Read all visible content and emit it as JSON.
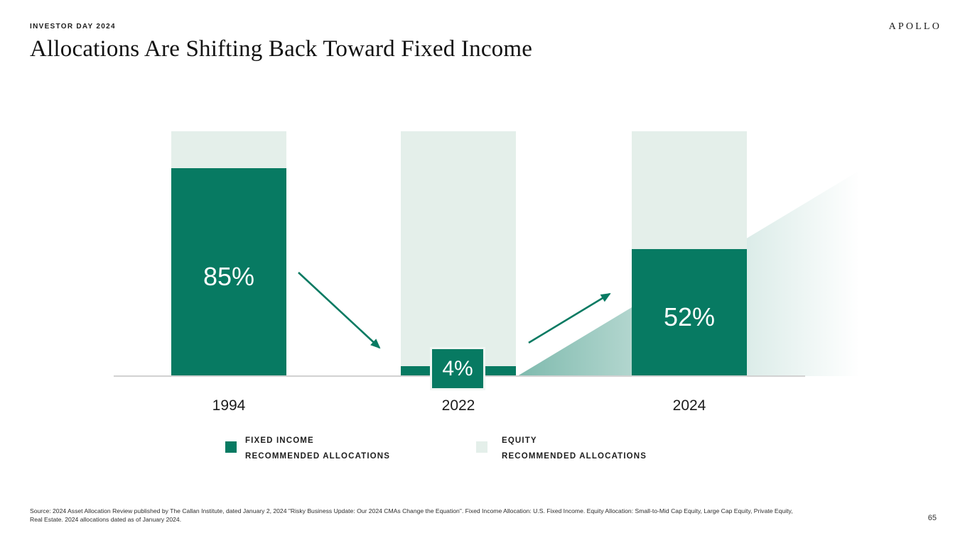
{
  "slide": {
    "eyebrow": "INVESTOR DAY 2024",
    "logo": "APOLLO",
    "title": "Allocations Are Shifting Back Toward Fixed Income",
    "page_number": "65",
    "footer_line1": "Source: 2024 Asset Allocation Review published by The Callan Institute, dated January 2, 2024 \"Risky Business Update: Our 2024 CMAs Change the Equation\". Fixed Income Allocation: U.S. Fixed Income. Equity Allocation: Small-to-Mid Cap Equity, Large Cap Equity, Private Equity,",
    "footer_line2": "Real Estate. 2024 allocations dated as of January 2024."
  },
  "colors": {
    "fixed_income": "#077a62",
    "equity": "#e4efea",
    "axis_line": "#d2d2d2"
  },
  "legend": {
    "items": [
      {
        "line1": "FIXED INCOME",
        "line2": "RECOMMENDED ALLOCATIONS",
        "swatch_color": "#077a62"
      },
      {
        "line1": "EQUITY",
        "line2": "RECOMMENDED ALLOCATIONS",
        "swatch_color": "#e4efea"
      }
    ]
  },
  "chart_data": {
    "type": "bar",
    "stacked": true,
    "title": "Allocations Are Shifting Back Toward Fixed Income",
    "categories": [
      "1994",
      "2022",
      "2024"
    ],
    "series": [
      {
        "name": "Fixed Income Recommended Allocations",
        "values": [
          85,
          4,
          52
        ],
        "color": "#077a62"
      },
      {
        "name": "Equity Recommended Allocations",
        "values": [
          15,
          96,
          48
        ],
        "color": "#e4efea"
      }
    ],
    "data_labels": [
      "85%",
      "4%",
      "52%"
    ],
    "xlabel": "",
    "ylabel": "",
    "ylim": [
      0,
      100
    ],
    "grid": false,
    "legend_position": "bottom",
    "annotations": [
      {
        "type": "arrow",
        "direction": "down",
        "from_category": "1994",
        "to_category": "2022"
      },
      {
        "type": "arrow",
        "direction": "up",
        "from_category": "2022",
        "to_category": "2024"
      },
      {
        "type": "gradient_wedge",
        "description": "teal gradient wedge rising from 2022 baseline toward upper right, fading out"
      }
    ]
  }
}
